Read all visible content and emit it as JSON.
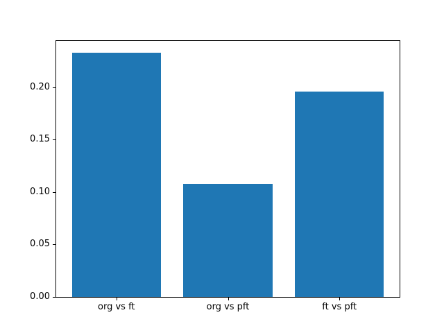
{
  "chart_data": {
    "type": "bar",
    "categories": [
      "org vs ft",
      "org vs pft",
      "ft vs pft"
    ],
    "values": [
      0.233,
      0.108,
      0.196
    ],
    "yticks": [
      0.0,
      0.05,
      0.1,
      0.15,
      0.2
    ],
    "ytick_labels": [
      "0.00",
      "0.05",
      "0.10",
      "0.15",
      "0.20"
    ],
    "ylim": [
      0,
      0.2443
    ],
    "xlim": [
      -0.54,
      2.54
    ],
    "bar_width": 0.8,
    "bar_color": "#1f77b4",
    "axis_color": "#000000",
    "background_color": "#ffffff",
    "grid": false,
    "legend": null,
    "title": "",
    "xlabel": "",
    "ylabel": ""
  }
}
